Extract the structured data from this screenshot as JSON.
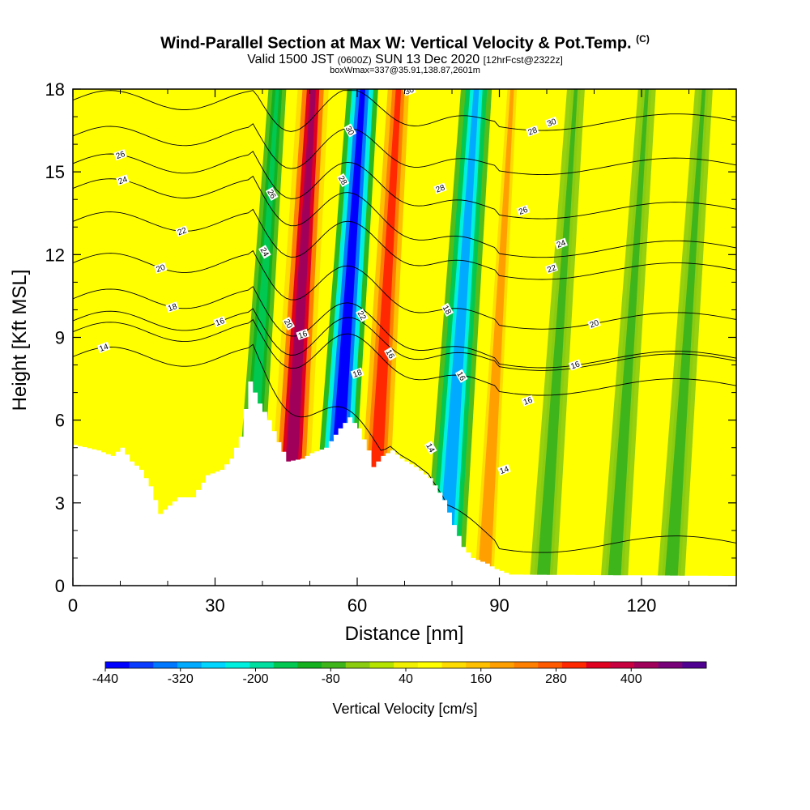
{
  "chart_data": {
    "type": "heatmap",
    "title": "Wind-Parallel Section at Max W: Vertical Velocity & Pot.Temp.",
    "title_mark": "(C)",
    "subtitle_main": "Valid 1500 JST",
    "subtitle_utc": "(0600Z)",
    "subtitle_date": "SUN 13 Dec 2020",
    "subtitle_fcst": "[12hrFcst@2322z]",
    "subtitle2": "boxWmax=337@35.91,138.87,2601m",
    "xlabel": "Distance [nm]",
    "ylabel": "Height [Kft MSL]",
    "xlim": [
      0,
      140
    ],
    "ylim": [
      0,
      18
    ],
    "x_ticks": [
      0,
      30,
      60,
      90,
      120
    ],
    "y_ticks": [
      0,
      3,
      6,
      9,
      12,
      15,
      18
    ],
    "colorbar": {
      "label": "Vertical Velocity [cm/s]",
      "tick_labels": [
        "-440",
        "-320",
        "-200",
        "-80",
        "40",
        "160",
        "280",
        "400"
      ],
      "bins": [
        -440,
        520
      ],
      "colors": [
        "#0000ff",
        "#0a3cff",
        "#0078ff",
        "#00aaff",
        "#00d6ff",
        "#00f0e0",
        "#00dfa0",
        "#00c850",
        "#14b020",
        "#3fb51c",
        "#8ccc10",
        "#b4e400",
        "#f0f000",
        "#ffff00",
        "#ffdc00",
        "#ffc000",
        "#ffa000",
        "#ff8000",
        "#ff5a00",
        "#ff2800",
        "#e00020",
        "#c80040",
        "#a0005a",
        "#780078",
        "#500090"
      ]
    },
    "velocity_bands": [
      {
        "x": 40,
        "value": -150
      },
      {
        "x": 48,
        "value": 420
      },
      {
        "x": 58,
        "value": -440
      },
      {
        "x": 66,
        "value": 300
      },
      {
        "x": 82,
        "value": -300
      },
      {
        "x": 90,
        "value": 180
      },
      {
        "x": 103,
        "value": -60
      },
      {
        "x": 118,
        "value": -60
      },
      {
        "x": 130,
        "value": -60
      }
    ],
    "terrain": [
      {
        "x": 0,
        "y": 5.1
      },
      {
        "x": 5,
        "y": 4.9
      },
      {
        "x": 8,
        "y": 4.7
      },
      {
        "x": 10,
        "y": 5.0
      },
      {
        "x": 12,
        "y": 4.5
      },
      {
        "x": 14,
        "y": 4.2
      },
      {
        "x": 16,
        "y": 3.6
      },
      {
        "x": 18,
        "y": 2.6
      },
      {
        "x": 20,
        "y": 2.9
      },
      {
        "x": 22,
        "y": 3.2
      },
      {
        "x": 25,
        "y": 3.2
      },
      {
        "x": 28,
        "y": 4.0
      },
      {
        "x": 31,
        "y": 4.2
      },
      {
        "x": 33,
        "y": 4.6
      },
      {
        "x": 35,
        "y": 5.4
      },
      {
        "x": 37,
        "y": 7.4
      },
      {
        "x": 39,
        "y": 6.6
      },
      {
        "x": 41,
        "y": 6.0
      },
      {
        "x": 43,
        "y": 5.2
      },
      {
        "x": 45,
        "y": 4.5
      },
      {
        "x": 48,
        "y": 4.6
      },
      {
        "x": 50,
        "y": 4.8
      },
      {
        "x": 53,
        "y": 5.0
      },
      {
        "x": 56,
        "y": 5.7
      },
      {
        "x": 58,
        "y": 6.1
      },
      {
        "x": 60,
        "y": 5.7
      },
      {
        "x": 62,
        "y": 4.9
      },
      {
        "x": 63,
        "y": 4.3
      },
      {
        "x": 65,
        "y": 4.7
      },
      {
        "x": 67,
        "y": 4.9
      },
      {
        "x": 69,
        "y": 4.6
      },
      {
        "x": 72,
        "y": 4.3
      },
      {
        "x": 75,
        "y": 3.9
      },
      {
        "x": 78,
        "y": 3.1
      },
      {
        "x": 80,
        "y": 2.2
      },
      {
        "x": 82,
        "y": 1.4
      },
      {
        "x": 84,
        "y": 1.0
      },
      {
        "x": 87,
        "y": 0.8
      },
      {
        "x": 89,
        "y": 0.6
      },
      {
        "x": 92,
        "y": 0.4
      },
      {
        "x": 140,
        "y": 0.35
      }
    ],
    "theta_contours": [
      {
        "value": "14",
        "far_y": 1.5,
        "base_y": 8.3,
        "label_x": 6.5,
        "label2": {
          "x": 91,
          "y": 4.2
        },
        "label3": {
          "x": 75.5,
          "y": 5.0
        }
      },
      {
        "value": "16",
        "far_y": 8.1,
        "base_y": 9.6,
        "label_x": 31,
        "label2": {
          "x": 106,
          "y": 8.0
        },
        "label3": {
          "x": 67,
          "y": 8.4
        }
      },
      {
        "value": "16",
        "far_y": 7.2,
        "base_y": 9.2,
        "label_x": 48.5,
        "label2": {
          "x": 96,
          "y": 6.7
        },
        "label3": {
          "x": 82,
          "y": 7.6
        }
      },
      {
        "value": "18",
        "far_y": 8.2,
        "base_y": 10.4,
        "label_x": 21,
        "label2": {
          "x": 60,
          "y": 7.7
        },
        "label3": {
          "x": 79,
          "y": 10.0
        }
      },
      {
        "value": "20",
        "far_y": 9.6,
        "base_y": 11.7,
        "label_x": 18.5,
        "label2": {
          "x": 110,
          "y": 9.5
        },
        "label3": {
          "x": 45.5,
          "y": 9.5
        }
      },
      {
        "value": "22",
        "far_y": 11.4,
        "base_y": 13.2,
        "label_x": 23,
        "label2": {
          "x": 101,
          "y": 11.5
        },
        "label3": {
          "x": 61,
          "y": 9.8
        }
      },
      {
        "value": "24",
        "far_y": 12.2,
        "base_y": 14.4,
        "label_x": 10.5,
        "label2": {
          "x": 103,
          "y": 12.4
        },
        "label3": {
          "x": 40.5,
          "y": 12.1
        }
      },
      {
        "value": "26",
        "far_y": 13.6,
        "base_y": 15.3,
        "label_x": 10,
        "label2": {
          "x": 95,
          "y": 13.6
        },
        "label3": {
          "x": 42,
          "y": 14.2
        }
      },
      {
        "value": "28",
        "far_y": 15.2,
        "base_y": 16.3,
        "label_x": 97,
        "label2": {
          "x": 77.5,
          "y": 14.4
        },
        "label3": {
          "x": 57,
          "y": 14.7
        }
      },
      {
        "value": "30",
        "far_y": 16.8,
        "base_y": 17.6,
        "label_x": 71,
        "label2": {
          "x": 101,
          "y": 16.8
        },
        "label3": {
          "x": 58.5,
          "y": 16.5
        }
      }
    ]
  }
}
